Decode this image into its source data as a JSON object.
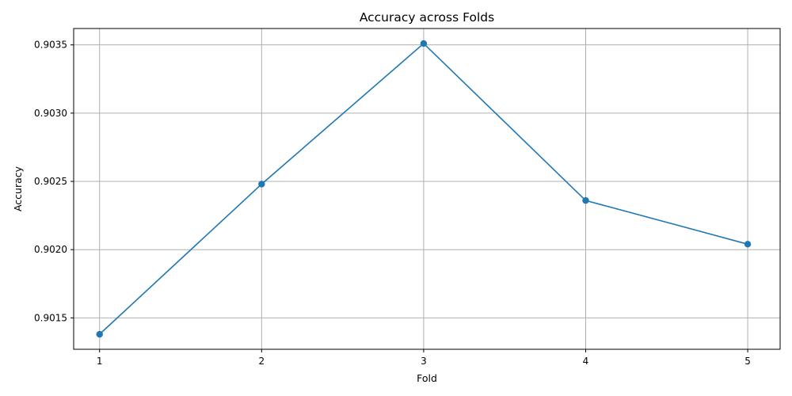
{
  "chart_data": {
    "type": "line",
    "title": "Accuracy across Folds",
    "xlabel": "Fold",
    "ylabel": "Accuracy",
    "x": [
      1,
      2,
      3,
      4,
      5
    ],
    "series": [
      {
        "values": [
          0.90138,
          0.90248,
          0.90351,
          0.90236,
          0.90204
        ],
        "color": "#1f77b4",
        "marker": "circle"
      }
    ],
    "xticks": [
      1,
      2,
      3,
      4,
      5
    ],
    "yticks": [
      "0.9015",
      "0.9020",
      "0.9025",
      "0.9030",
      "0.9035"
    ],
    "ytick_values": [
      0.9015,
      0.902,
      0.9025,
      0.903,
      0.9035
    ],
    "xlim": [
      0.84,
      5.2
    ],
    "ylim": [
      0.90127,
      0.90362
    ],
    "grid": true,
    "legend": false
  }
}
